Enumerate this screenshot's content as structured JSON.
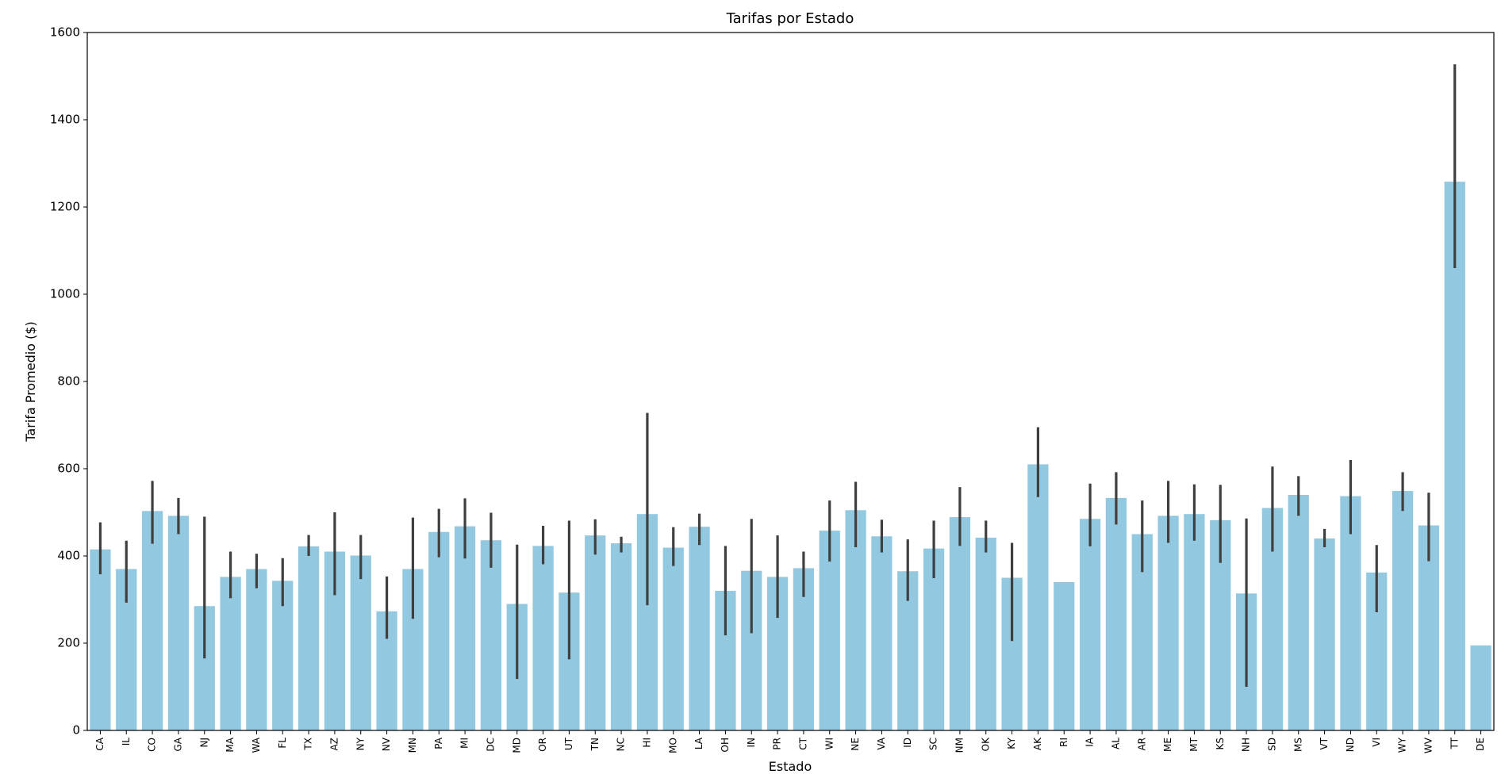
{
  "chart_data": {
    "type": "bar",
    "title": "Tarifas por Estado",
    "xlabel": "Estado",
    "ylabel": "Tarifa Promedio ($)",
    "ylim": [
      0,
      1600
    ],
    "yticks": [
      0,
      200,
      400,
      600,
      800,
      1000,
      1200,
      1400,
      1600
    ],
    "grid": false,
    "bar_color": "#92c9e0",
    "error_color": "#3f3f3f",
    "categories": [
      "CA",
      "IL",
      "CO",
      "GA",
      "NJ",
      "MA",
      "WA",
      "FL",
      "TX",
      "AZ",
      "NY",
      "NV",
      "MN",
      "PA",
      "MI",
      "DC",
      "MD",
      "OR",
      "UT",
      "TN",
      "NC",
      "HI",
      "MO",
      "LA",
      "OH",
      "IN",
      "PR",
      "CT",
      "WI",
      "NE",
      "VA",
      "ID",
      "SC",
      "NM",
      "OK",
      "KY",
      "AK",
      "RI",
      "IA",
      "AL",
      "AR",
      "ME",
      "MT",
      "KS",
      "NH",
      "SD",
      "MS",
      "VT",
      "ND",
      "VI",
      "WY",
      "WV",
      "TT",
      "DE"
    ],
    "values": [
      415,
      370,
      503,
      492,
      285,
      352,
      370,
      343,
      422,
      410,
      401,
      273,
      370,
      455,
      468,
      436,
      290,
      423,
      316,
      447,
      429,
      496,
      419,
      467,
      320,
      366,
      352,
      372,
      458,
      505,
      445,
      365,
      417,
      489,
      442,
      350,
      610,
      340,
      485,
      533,
      450,
      492,
      496,
      482,
      314,
      510,
      540,
      440,
      537,
      362,
      549,
      470,
      1258,
      195
    ],
    "errors": [
      [
        358,
        477
      ],
      [
        293,
        435
      ],
      [
        428,
        572
      ],
      [
        450,
        533
      ],
      [
        165,
        490
      ],
      [
        303,
        410
      ],
      [
        326,
        405
      ],
      [
        285,
        395
      ],
      [
        400,
        448
      ],
      [
        310,
        500
      ],
      [
        347,
        448
      ],
      [
        210,
        353
      ],
      [
        256,
        488
      ],
      [
        397,
        508
      ],
      [
        394,
        532
      ],
      [
        373,
        499
      ],
      [
        118,
        426
      ],
      [
        381,
        469
      ],
      [
        163,
        481
      ],
      [
        403,
        484
      ],
      [
        408,
        444
      ],
      [
        287,
        728
      ],
      [
        377,
        466
      ],
      [
        425,
        497
      ],
      [
        218,
        423
      ],
      [
        223,
        485
      ],
      [
        258,
        447
      ],
      [
        306,
        410
      ],
      [
        387,
        527
      ],
      [
        420,
        570
      ],
      [
        408,
        483
      ],
      [
        297,
        438
      ],
      [
        349,
        481
      ],
      [
        423,
        558
      ],
      [
        408,
        481
      ],
      [
        205,
        430
      ],
      [
        535,
        695
      ],
      [
        340,
        340
      ],
      [
        422,
        566
      ],
      [
        472,
        592
      ],
      [
        363,
        527
      ],
      [
        430,
        572
      ],
      [
        435,
        564
      ],
      [
        384,
        563
      ],
      [
        100,
        486
      ],
      [
        410,
        605
      ],
      [
        492,
        583
      ],
      [
        420,
        462
      ],
      [
        450,
        620
      ],
      [
        271,
        425
      ],
      [
        503,
        592
      ],
      [
        388,
        545
      ],
      [
        1060,
        1527
      ],
      [
        195,
        195
      ]
    ]
  }
}
